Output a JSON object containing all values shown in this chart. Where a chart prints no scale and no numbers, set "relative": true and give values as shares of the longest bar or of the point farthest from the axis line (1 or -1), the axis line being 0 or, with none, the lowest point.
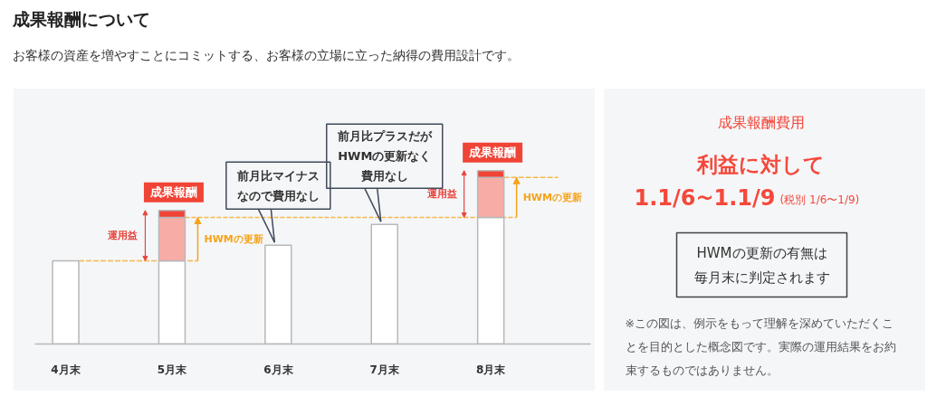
{
  "chart_data": [
    {
      "type": "bar",
      "title": "成果報酬について",
      "subtitle": "お客様の資産を増やすことにコミットする、お客様の立場に立った納得の費用設計です。",
      "categories": [
        "4月末",
        "5月末",
        "6月末",
        "7月末",
        "8月末"
      ],
      "stacked": true,
      "relative": true,
      "series": [
        {
          "color": "#ffffff",
          "values": [
            0.48,
            0.48,
            0.57,
            0.69,
            0.73
          ]
        },
        {
          "name": "HWMの更新",
          "color": "#f8aca6",
          "values": [
            null,
            0.25,
            null,
            null,
            0.23
          ]
        },
        {
          "name": "成果報酬",
          "color": "#f04436",
          "values": [
            null,
            0.04,
            null,
            null,
            0.04
          ]
        }
      ],
      "ref_lines": [
        {
          "axis": "y",
          "value": 0.48,
          "color": "#f7b84b",
          "line_style": "dashed"
        },
        {
          "axis": "y",
          "value": 0.73,
          "color": "#f7b84b",
          "line_style": "dashed"
        },
        {
          "axis": "y",
          "value": 0.96,
          "color": "#f7b84b",
          "line_style": "dashed"
        }
      ],
      "annotations": [
        "運用益",
        {
          "text": "前月比マイナスなので費用なし",
          "x": "6月末",
          "y": 0.57
        },
        {
          "text": "前月比プラスだがHWMの更新なく費用なし",
          "x": "7月末",
          "y": 0.69
        },
        "運用益"
      ]
    },
    {
      "type": "other",
      "title": "成果報酬費用",
      "subtitle": "利益に対して",
      "annotations": [
        "1.1/6~1.1/9",
        "(税別 1/6〜1/9)",
        "HWMの更新の有無は毎月末に判定されます",
        "※この図は、例示をもって理解を深めていただくことを目的とした概念図です。実際の運用結果をお約束するものではありません。"
      ]
    }
  ]
}
